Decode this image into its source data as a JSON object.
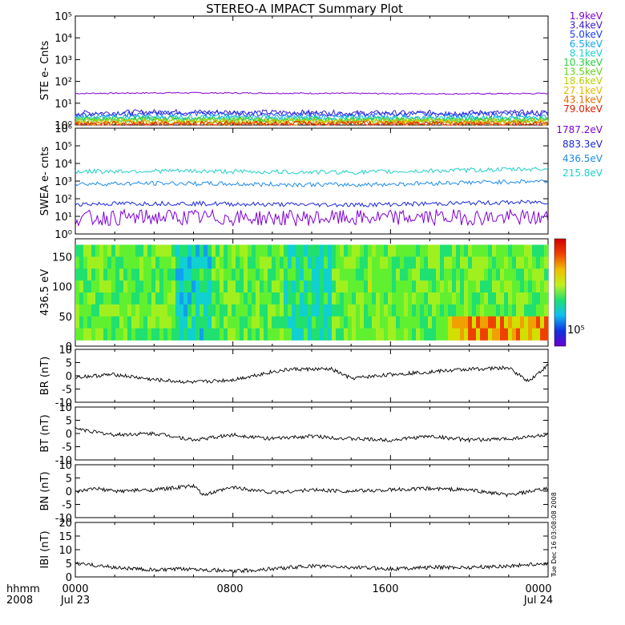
{
  "title": "STEREO-A IMPACT Summary Plot",
  "colors": {
    "frame": "#000000",
    "ste_channels": [
      "#7f00d4",
      "#3b1bd0",
      "#1a3df0",
      "#12a8e8",
      "#1ecfd0",
      "#26d040",
      "#63d018",
      "#b8d000",
      "#e6b800",
      "#e07000",
      "#d82000"
    ],
    "swea_channels": [
      "#7f00d4",
      "#1a28d8",
      "#1e8ce8",
      "#20d0c8"
    ]
  },
  "footer": {
    "left_top": "hhmm",
    "left_bottom": "2008",
    "timestamp": "Tue Dec 16 03:08:08 2008"
  },
  "chart_data": [
    {
      "type": "line",
      "ylabel": "STE e- Cnts",
      "yscale": "log",
      "ylim": [
        1,
        100000
      ],
      "yticks": [
        "10⁰",
        "10¹",
        "10²",
        "10³",
        "10⁴",
        "10⁵"
      ],
      "legend_placement": "right",
      "series": [
        {
          "name": "1.9keV",
          "values": [
            28,
            30,
            29,
            28,
            27,
            28
          ]
        },
        {
          "name": "3.4keV",
          "values": [
            3.5,
            4,
            3.8,
            3.5,
            3.6,
            3.7
          ]
        },
        {
          "name": "5.0keV",
          "values": [
            3,
            3.4,
            3.2,
            3,
            3.1,
            3.2
          ]
        },
        {
          "name": "6.5keV",
          "values": [
            2.2,
            2.4,
            2.3,
            2.2,
            2.2,
            2.3
          ]
        },
        {
          "name": "8.1keV",
          "values": [
            2,
            2.1,
            2,
            2,
            2,
            2
          ]
        },
        {
          "name": "10.3keV",
          "values": [
            1.8,
            1.9,
            1.8,
            1.8,
            1.8,
            1.8
          ]
        },
        {
          "name": "13.5keV",
          "values": [
            1.6,
            1.7,
            1.6,
            1.6,
            1.6,
            1.6
          ]
        },
        {
          "name": "18.6keV",
          "values": [
            1.5,
            1.5,
            1.5,
            1.5,
            1.5,
            1.5
          ]
        },
        {
          "name": "27.1keV",
          "values": [
            1.3,
            1.3,
            1.3,
            1.3,
            1.3,
            1.3
          ]
        },
        {
          "name": "43.1keV",
          "values": [
            1.2,
            1.2,
            1.2,
            1.2,
            1.2,
            1.2
          ]
        },
        {
          "name": "79.0keV",
          "values": [
            1.1,
            1.1,
            1.1,
            1.1,
            1.1,
            1.1
          ]
        }
      ]
    },
    {
      "type": "line",
      "ylabel": "SWEA e- cnts",
      "yscale": "log",
      "ylim": [
        1,
        1000000
      ],
      "yticks": [
        "10⁰",
        "10¹",
        "10²",
        "10³",
        "10⁴",
        "10⁵",
        "10⁶"
      ],
      "legend_placement": "right",
      "series": [
        {
          "name": "1787.2eV",
          "values": [
            8,
            9,
            8,
            8,
            9,
            8
          ]
        },
        {
          "name": "883.3eV",
          "values": [
            50,
            55,
            48,
            45,
            55,
            65
          ]
        },
        {
          "name": "436.5eV",
          "values": [
            700,
            750,
            650,
            620,
            800,
            1000
          ]
        },
        {
          "name": "215.8eV",
          "values": [
            3500,
            3800,
            3300,
            3200,
            4000,
            5000
          ]
        }
      ]
    },
    {
      "type": "heatmap",
      "ylabel": "436.5 eV",
      "ylim": [
        0,
        180
      ],
      "yticks": [
        "0",
        "50",
        "100",
        "150"
      ],
      "colorbar_label": "10⁵",
      "y_range_filled": [
        10,
        170
      ]
    },
    {
      "type": "line",
      "ylabel": "BR (nT)",
      "ylim": [
        -10,
        10
      ],
      "yticks": [
        "-10",
        "-5",
        "0",
        "5",
        "10"
      ],
      "x": [
        0,
        2,
        4,
        6,
        8,
        10,
        11,
        13,
        14,
        16,
        18,
        20,
        22,
        23,
        24
      ],
      "values": [
        -0.5,
        0.5,
        -1.5,
        -2.5,
        -1.5,
        1.5,
        2.5,
        2.5,
        -1,
        0.5,
        1.5,
        2.5,
        3,
        -2,
        4
      ]
    },
    {
      "type": "line",
      "ylabel": "BT (nT)",
      "ylim": [
        -10,
        10
      ],
      "yticks": [
        "-10",
        "-5",
        "0",
        "5",
        "10"
      ],
      "x": [
        0,
        1,
        2,
        4,
        5,
        6,
        8,
        10,
        12,
        14,
        16,
        18,
        20,
        22,
        24
      ],
      "values": [
        2,
        0.5,
        -0.5,
        0,
        -1,
        -2.5,
        -0.5,
        -2,
        -1,
        -2,
        -2.5,
        -1,
        -2.5,
        -2,
        -0.5
      ]
    },
    {
      "type": "line",
      "ylabel": "BN (nT)",
      "ylim": [
        -10,
        10
      ],
      "yticks": [
        "-10",
        "-5",
        "0",
        "5",
        "10"
      ],
      "x": [
        0,
        1,
        2,
        4,
        6,
        6.5,
        8,
        10,
        12,
        14,
        16,
        18,
        20,
        22,
        24
      ],
      "values": [
        -0.5,
        1,
        0,
        0.5,
        2,
        -1.5,
        1.5,
        -0.5,
        0.5,
        0,
        0.5,
        1,
        0.5,
        -1.5,
        1
      ]
    },
    {
      "type": "line",
      "ylabel": "IBI (nT)",
      "ylim": [
        0,
        20
      ],
      "yticks": [
        "0",
        "5",
        "10",
        "15",
        "20"
      ],
      "x": [
        0,
        2,
        4,
        6,
        8,
        9,
        12,
        14,
        16,
        18,
        20,
        22,
        24
      ],
      "values": [
        5,
        3.5,
        2.5,
        3,
        2,
        2.5,
        4,
        3.5,
        3,
        3.5,
        3.5,
        4,
        5
      ]
    }
  ],
  "xaxis": {
    "ticks": [
      "0000",
      "0800",
      "1600",
      "0000"
    ],
    "tick_hours": [
      0,
      8,
      16,
      24
    ],
    "date_labels": [
      "Jul 23",
      "Jul 24"
    ]
  }
}
